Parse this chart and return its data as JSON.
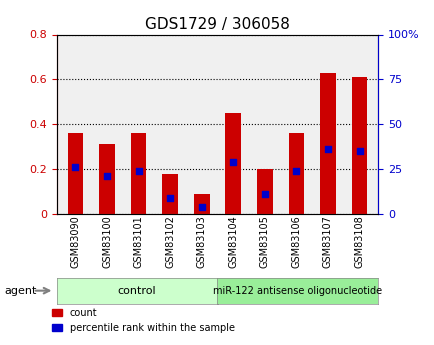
{
  "title": "GDS1729 / 306058",
  "categories": [
    "GSM83090",
    "GSM83100",
    "GSM83101",
    "GSM83102",
    "GSM83103",
    "GSM83104",
    "GSM83105",
    "GSM83106",
    "GSM83107",
    "GSM83108"
  ],
  "red_values": [
    0.36,
    0.31,
    0.36,
    0.18,
    0.09,
    0.45,
    0.2,
    0.36,
    0.63,
    0.61
  ],
  "blue_values": [
    0.21,
    0.17,
    0.19,
    0.07,
    0.03,
    0.23,
    0.09,
    0.19,
    0.29,
    0.28
  ],
  "ylim_left": [
    0,
    0.8
  ],
  "ylim_right": [
    0,
    100
  ],
  "yticks_left": [
    0,
    0.2,
    0.4,
    0.6,
    0.8
  ],
  "yticks_right": [
    0,
    25,
    50,
    75,
    100
  ],
  "ytick_labels_left": [
    "0",
    "0.2",
    "0.4",
    "0.6",
    "0.8"
  ],
  "ytick_labels_right": [
    "0",
    "25",
    "50",
    "75",
    "100%"
  ],
  "left_tick_color": "#cc0000",
  "right_tick_color": "#0000cc",
  "bar_color": "#cc0000",
  "marker_color": "#0000cc",
  "bar_width": 0.5,
  "grid_color": "#000000",
  "bg_plot": "#f0f0f0",
  "bg_label_control": "#ccffcc",
  "bg_label_treatment": "#99ee99",
  "control_label": "control",
  "treatment_label": "miR-122 antisense oligonucleotide",
  "agent_label": "agent",
  "legend_count": "count",
  "legend_pct": "percentile rank within the sample",
  "title_fontsize": 11,
  "tick_fontsize": 8,
  "group_label_fontsize": 8
}
